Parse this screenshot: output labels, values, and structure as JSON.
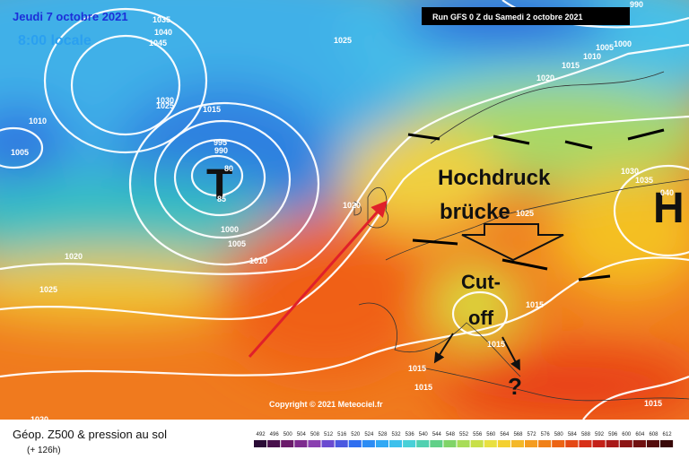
{
  "header": {
    "date": "Jeudi 7 octobre 2021",
    "time": "8:00 locale",
    "run": "Run GFS 0 Z du Samedi 2 octobre 2021"
  },
  "map": {
    "low_symbol": "T",
    "high_symbol": "H",
    "isobar_labels": [
      "1035",
      "1040",
      "1045",
      "1025",
      "1030",
      "1025",
      "1015",
      "1010",
      "1005",
      "995",
      "990",
      "80",
      "85",
      "1000",
      "1005",
      "1010",
      "1020",
      "1025",
      "1020",
      "1025",
      "1020",
      "1015",
      "1010",
      "1005",
      "1000",
      "990",
      "1030",
      "1035",
      "040",
      "1015",
      "1015",
      "1015",
      "1015",
      "1020",
      "1015"
    ],
    "annotations": [
      "Hochdruck",
      "brücke",
      "Cut-",
      "off",
      "?"
    ],
    "copyright": "Copyright © 2021 Meteociel.fr"
  },
  "footer": {
    "title": "Géop. Z500 & pression au sol",
    "lead": "(+ 126h)",
    "scale": [
      "492",
      "496",
      "500",
      "504",
      "508",
      "512",
      "516",
      "520",
      "524",
      "528",
      "532",
      "536",
      "540",
      "544",
      "548",
      "552",
      "556",
      "560",
      "564",
      "568",
      "572",
      "576",
      "580",
      "584",
      "588",
      "592",
      "596",
      "600",
      "604",
      "608",
      "612"
    ]
  }
}
